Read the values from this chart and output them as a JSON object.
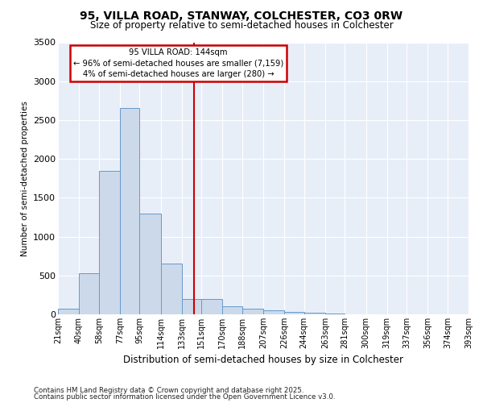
{
  "title1": "95, VILLA ROAD, STANWAY, COLCHESTER, CO3 0RW",
  "title2": "Size of property relative to semi-detached houses in Colchester",
  "xlabel": "Distribution of semi-detached houses by size in Colchester",
  "ylabel": "Number of semi-detached properties",
  "footer1": "Contains HM Land Registry data © Crown copyright and database right 2025.",
  "footer2": "Contains public sector information licensed under the Open Government Licence v3.0.",
  "annotation_title": "95 VILLA ROAD: 144sqm",
  "annotation_line1": "← 96% of semi-detached houses are smaller (7,159)",
  "annotation_line2": "4% of semi-detached houses are larger (280) →",
  "property_size": 144,
  "bin_edges": [
    21,
    40,
    58,
    77,
    95,
    114,
    133,
    151,
    170,
    188,
    207,
    226,
    244,
    263,
    281,
    300,
    319,
    337,
    356,
    374,
    393
  ],
  "bar_heights": [
    75,
    530,
    1850,
    2650,
    1300,
    650,
    200,
    200,
    100,
    75,
    55,
    30,
    20,
    15,
    5,
    3,
    2,
    2,
    2,
    2
  ],
  "bar_color": "#ccd9ea",
  "bar_edge_color": "#6699cc",
  "vline_color": "#cc0000",
  "bg_color": "#e8eef8",
  "annotation_box_color": "#cc0000",
  "ylim": [
    0,
    3500
  ],
  "yticks": [
    0,
    500,
    1000,
    1500,
    2000,
    2500,
    3000,
    3500
  ]
}
